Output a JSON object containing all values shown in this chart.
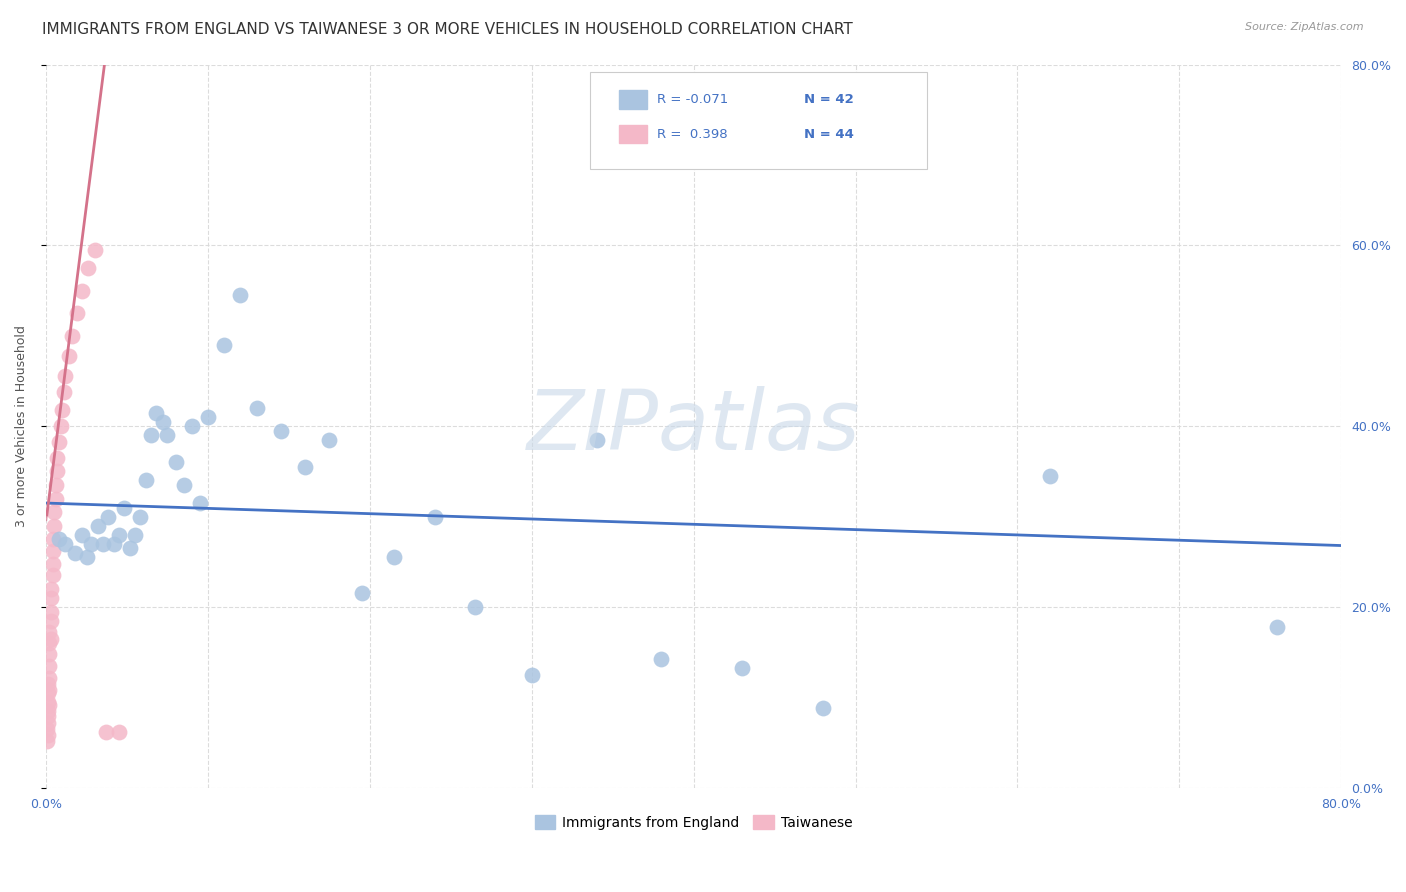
{
  "title": "IMMIGRANTS FROM ENGLAND VS TAIWANESE 3 OR MORE VEHICLES IN HOUSEHOLD CORRELATION CHART",
  "source": "Source: ZipAtlas.com",
  "ylabel": "3 or more Vehicles in Household",
  "xlim": [
    0.0,
    0.8
  ],
  "ylim": [
    0.0,
    0.8
  ],
  "xticks": [
    0.0,
    0.1,
    0.2,
    0.3,
    0.4,
    0.5,
    0.6,
    0.7,
    0.8
  ],
  "yticks": [
    0.0,
    0.2,
    0.4,
    0.6,
    0.8
  ],
  "xtick_labels": [
    "0.0%",
    "",
    "",
    "",
    "",
    "",
    "",
    "",
    "80.0%"
  ],
  "ytick_labels_right": [
    "0.0%",
    "20.0%",
    "40.0%",
    "60.0%",
    "80.0%"
  ],
  "watermark": "ZIPatlas",
  "england_x": [
    0.008,
    0.012,
    0.018,
    0.022,
    0.025,
    0.028,
    0.032,
    0.035,
    0.038,
    0.042,
    0.045,
    0.048,
    0.052,
    0.055,
    0.058,
    0.062,
    0.065,
    0.068,
    0.072,
    0.075,
    0.08,
    0.085,
    0.09,
    0.095,
    0.1,
    0.11,
    0.12,
    0.13,
    0.145,
    0.16,
    0.175,
    0.195,
    0.215,
    0.24,
    0.265,
    0.3,
    0.34,
    0.38,
    0.43,
    0.48,
    0.62,
    0.76
  ],
  "england_y": [
    0.275,
    0.27,
    0.26,
    0.28,
    0.255,
    0.27,
    0.29,
    0.27,
    0.3,
    0.27,
    0.28,
    0.31,
    0.265,
    0.28,
    0.3,
    0.34,
    0.39,
    0.415,
    0.405,
    0.39,
    0.36,
    0.335,
    0.4,
    0.315,
    0.41,
    0.49,
    0.545,
    0.42,
    0.395,
    0.355,
    0.385,
    0.215,
    0.255,
    0.3,
    0.2,
    0.125,
    0.385,
    0.143,
    0.133,
    0.088,
    0.345,
    0.178
  ],
  "taiwan_x": [
    0.0005,
    0.0005,
    0.001,
    0.001,
    0.001,
    0.001,
    0.001,
    0.001,
    0.001,
    0.002,
    0.002,
    0.002,
    0.002,
    0.002,
    0.002,
    0.002,
    0.003,
    0.003,
    0.003,
    0.003,
    0.003,
    0.004,
    0.004,
    0.004,
    0.004,
    0.005,
    0.005,
    0.006,
    0.006,
    0.007,
    0.007,
    0.008,
    0.009,
    0.01,
    0.011,
    0.012,
    0.014,
    0.016,
    0.019,
    0.022,
    0.026,
    0.03,
    0.037,
    0.045
  ],
  "taiwan_y": [
    0.052,
    0.065,
    0.058,
    0.072,
    0.085,
    0.095,
    0.105,
    0.115,
    0.08,
    0.092,
    0.108,
    0.122,
    0.135,
    0.148,
    0.16,
    0.172,
    0.185,
    0.195,
    0.21,
    0.22,
    0.165,
    0.235,
    0.248,
    0.262,
    0.275,
    0.29,
    0.305,
    0.32,
    0.335,
    0.35,
    0.365,
    0.382,
    0.4,
    0.418,
    0.438,
    0.455,
    0.478,
    0.5,
    0.525,
    0.55,
    0.575,
    0.595,
    0.062,
    0.062
  ],
  "england_line_color": "#4472c4",
  "taiwan_line_color": "#d4728a",
  "england_scatter_color": "#aac4e0",
  "taiwan_scatter_color": "#f4b8c8",
  "grid_color": "#d9d9d9",
  "background_color": "#ffffff",
  "title_fontsize": 11,
  "tick_fontsize": 9,
  "watermark_color": "#c8d8e8",
  "watermark_fontsize": 60,
  "england_line_start_y": 0.315,
  "england_line_end_y": 0.268,
  "taiwan_line_slope": 14.0,
  "taiwan_line_intercept": 0.295
}
